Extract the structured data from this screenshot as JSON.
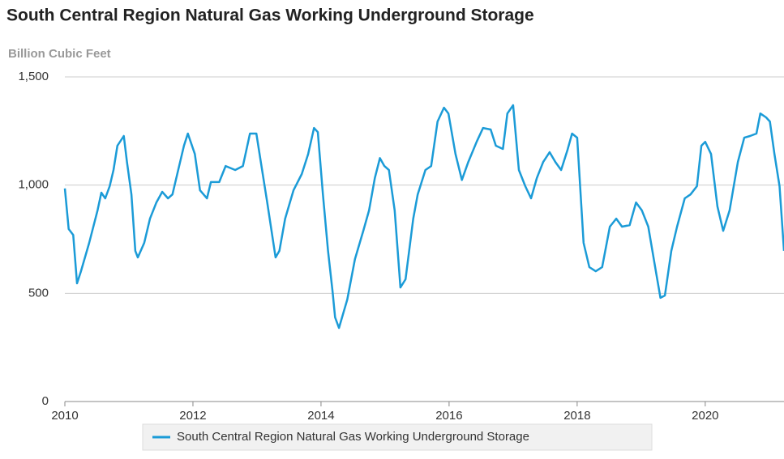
{
  "chart_data": {
    "type": "line",
    "title": "South Central Region Natural Gas Working Underground Storage",
    "y_label": "Billion Cubic Feet",
    "x": [
      2010,
      2010.06,
      2010.13,
      2010.19,
      2010.25,
      2010.38,
      2010.51,
      2010.57,
      2010.63,
      2010.7,
      2010.76,
      2010.82,
      2010.92,
      2010.97,
      2011.04,
      2011.1,
      2011.14,
      2011.24,
      2011.33,
      2011.43,
      2011.52,
      2011.61,
      2011.68,
      2011.77,
      2011.86,
      2011.92,
      2012.03,
      2012.11,
      2012.22,
      2012.28,
      2012.41,
      2012.51,
      2012.66,
      2012.78,
      2012.89,
      2012.99,
      2013.06,
      2013.16,
      2013.29,
      2013.35,
      2013.44,
      2013.57,
      2013.7,
      2013.8,
      2013.89,
      2013.95,
      2014.03,
      2014.11,
      2014.18,
      2014.22,
      2014.28,
      2014.41,
      2014.53,
      2014.66,
      2014.75,
      2014.84,
      2014.92,
      2014.99,
      2015.06,
      2015.15,
      2015.24,
      2015.32,
      2015.44,
      2015.51,
      2015.63,
      2015.72,
      2015.82,
      2015.92,
      2015.99,
      2016.1,
      2016.2,
      2016.3,
      2016.43,
      2016.53,
      2016.65,
      2016.73,
      2016.84,
      2016.91,
      2017,
      2017.09,
      2017.19,
      2017.28,
      2017.37,
      2017.47,
      2017.57,
      2017.66,
      2017.75,
      2017.85,
      2017.92,
      2018,
      2018.1,
      2018.19,
      2018.29,
      2018.39,
      2018.51,
      2018.61,
      2018.7,
      2018.82,
      2018.92,
      2019.01,
      2019.11,
      2019.24,
      2019.3,
      2019.37,
      2019.47,
      2019.56,
      2019.68,
      2019.77,
      2019.87,
      2019.94,
      2020,
      2020.09,
      2020.19,
      2020.28,
      2020.38,
      2020.51,
      2020.61,
      2020.7,
      2020.8,
      2020.86,
      2020.95,
      2021.01,
      2021.08,
      2021.16,
      2021.23
    ],
    "series": [
      {
        "name": "South Central Region Natural Gas Working Underground Storage",
        "color": "#1b9bd7",
        "values": [
          985,
          797,
          770,
          546,
          600,
          733,
          883,
          965,
          939,
          995,
          1070,
          1182,
          1227,
          1107,
          957,
          696,
          666,
          733,
          845,
          920,
          969,
          939,
          957,
          1070,
          1182,
          1238,
          1144,
          976,
          939,
          1014,
          1014,
          1088,
          1070,
          1088,
          1238,
          1238,
          1107,
          920,
          666,
          696,
          845,
          976,
          1051,
          1144,
          1264,
          1245,
          957,
          696,
          508,
          389,
          340,
          471,
          658,
          789,
          883,
          1032,
          1125,
          1088,
          1070,
          883,
          527,
          565,
          845,
          957,
          1070,
          1088,
          1294,
          1358,
          1331,
          1144,
          1024,
          1107,
          1200,
          1264,
          1257,
          1182,
          1167,
          1331,
          1369,
          1070,
          995,
          939,
          1032,
          1107,
          1152,
          1107,
          1070,
          1163,
          1238,
          1219,
          733,
          621,
          602,
          621,
          808,
          845,
          808,
          815,
          920,
          883,
          808,
          583,
          479,
          490,
          696,
          808,
          939,
          957,
          995,
          1182,
          1200,
          1144,
          901,
          789,
          883,
          1107,
          1219,
          1227,
          1238,
          1331,
          1313,
          1294,
          1144,
          995,
          696
        ]
      }
    ],
    "xlim": [
      2010,
      2021.23
    ],
    "xticks": [
      2010,
      2012,
      2014,
      2016,
      2018,
      2020
    ],
    "ylim": [
      0,
      1500
    ],
    "yticks": [
      0,
      500,
      {
        "value": 1000,
        "label": "1,000"
      },
      {
        "value": 1500,
        "label": "1,500"
      }
    ],
    "grid": true,
    "legend": "bottom"
  }
}
